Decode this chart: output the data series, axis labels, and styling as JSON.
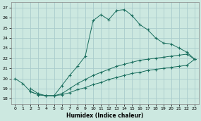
{
  "xlabel": "Humidex (Indice chaleur)",
  "background_color": "#cce8e0",
  "grid_color": "#aacccc",
  "line_color": "#1a6e5e",
  "xlim": [
    -0.5,
    23.5
  ],
  "ylim": [
    17.5,
    27.5
  ],
  "xticks": [
    0,
    1,
    2,
    3,
    4,
    5,
    6,
    7,
    8,
    9,
    10,
    11,
    12,
    13,
    14,
    15,
    16,
    17,
    18,
    19,
    20,
    21,
    22,
    23
  ],
  "yticks": [
    18,
    19,
    20,
    21,
    22,
    23,
    24,
    25,
    26,
    27
  ],
  "line1_x": [
    0,
    1,
    2,
    3,
    4,
    5,
    6,
    7,
    8,
    9,
    10,
    11,
    12,
    13,
    14,
    15,
    16,
    17,
    18,
    19,
    20,
    21,
    22,
    23
  ],
  "line1_y": [
    20.0,
    19.5,
    18.7,
    18.4,
    18.3,
    18.3,
    19.3,
    20.3,
    21.2,
    22.2,
    25.7,
    26.3,
    25.8,
    26.7,
    26.8,
    26.2,
    25.3,
    24.8,
    24.0,
    23.5,
    23.4,
    23.0,
    22.6,
    21.9
  ],
  "line2_x": [
    2,
    3,
    4,
    5,
    6,
    7,
    8,
    9,
    10,
    11,
    12,
    13,
    14,
    15,
    16,
    17,
    18,
    19,
    20,
    21,
    22,
    23
  ],
  "line2_y": [
    19.0,
    18.5,
    18.3,
    18.3,
    18.5,
    19.0,
    19.5,
    19.9,
    20.3,
    20.6,
    20.9,
    21.2,
    21.4,
    21.6,
    21.8,
    21.9,
    22.0,
    22.1,
    22.2,
    22.3,
    22.4,
    21.9
  ],
  "line3_x": [
    2,
    3,
    4,
    5,
    6,
    7,
    8,
    9,
    10,
    11,
    12,
    13,
    14,
    15,
    16,
    17,
    18,
    19,
    20,
    21,
    22,
    23
  ],
  "line3_y": [
    18.7,
    18.4,
    18.3,
    18.3,
    18.4,
    18.6,
    18.9,
    19.1,
    19.4,
    19.6,
    19.9,
    20.1,
    20.3,
    20.5,
    20.6,
    20.8,
    20.9,
    21.0,
    21.1,
    21.2,
    21.3,
    21.9
  ]
}
